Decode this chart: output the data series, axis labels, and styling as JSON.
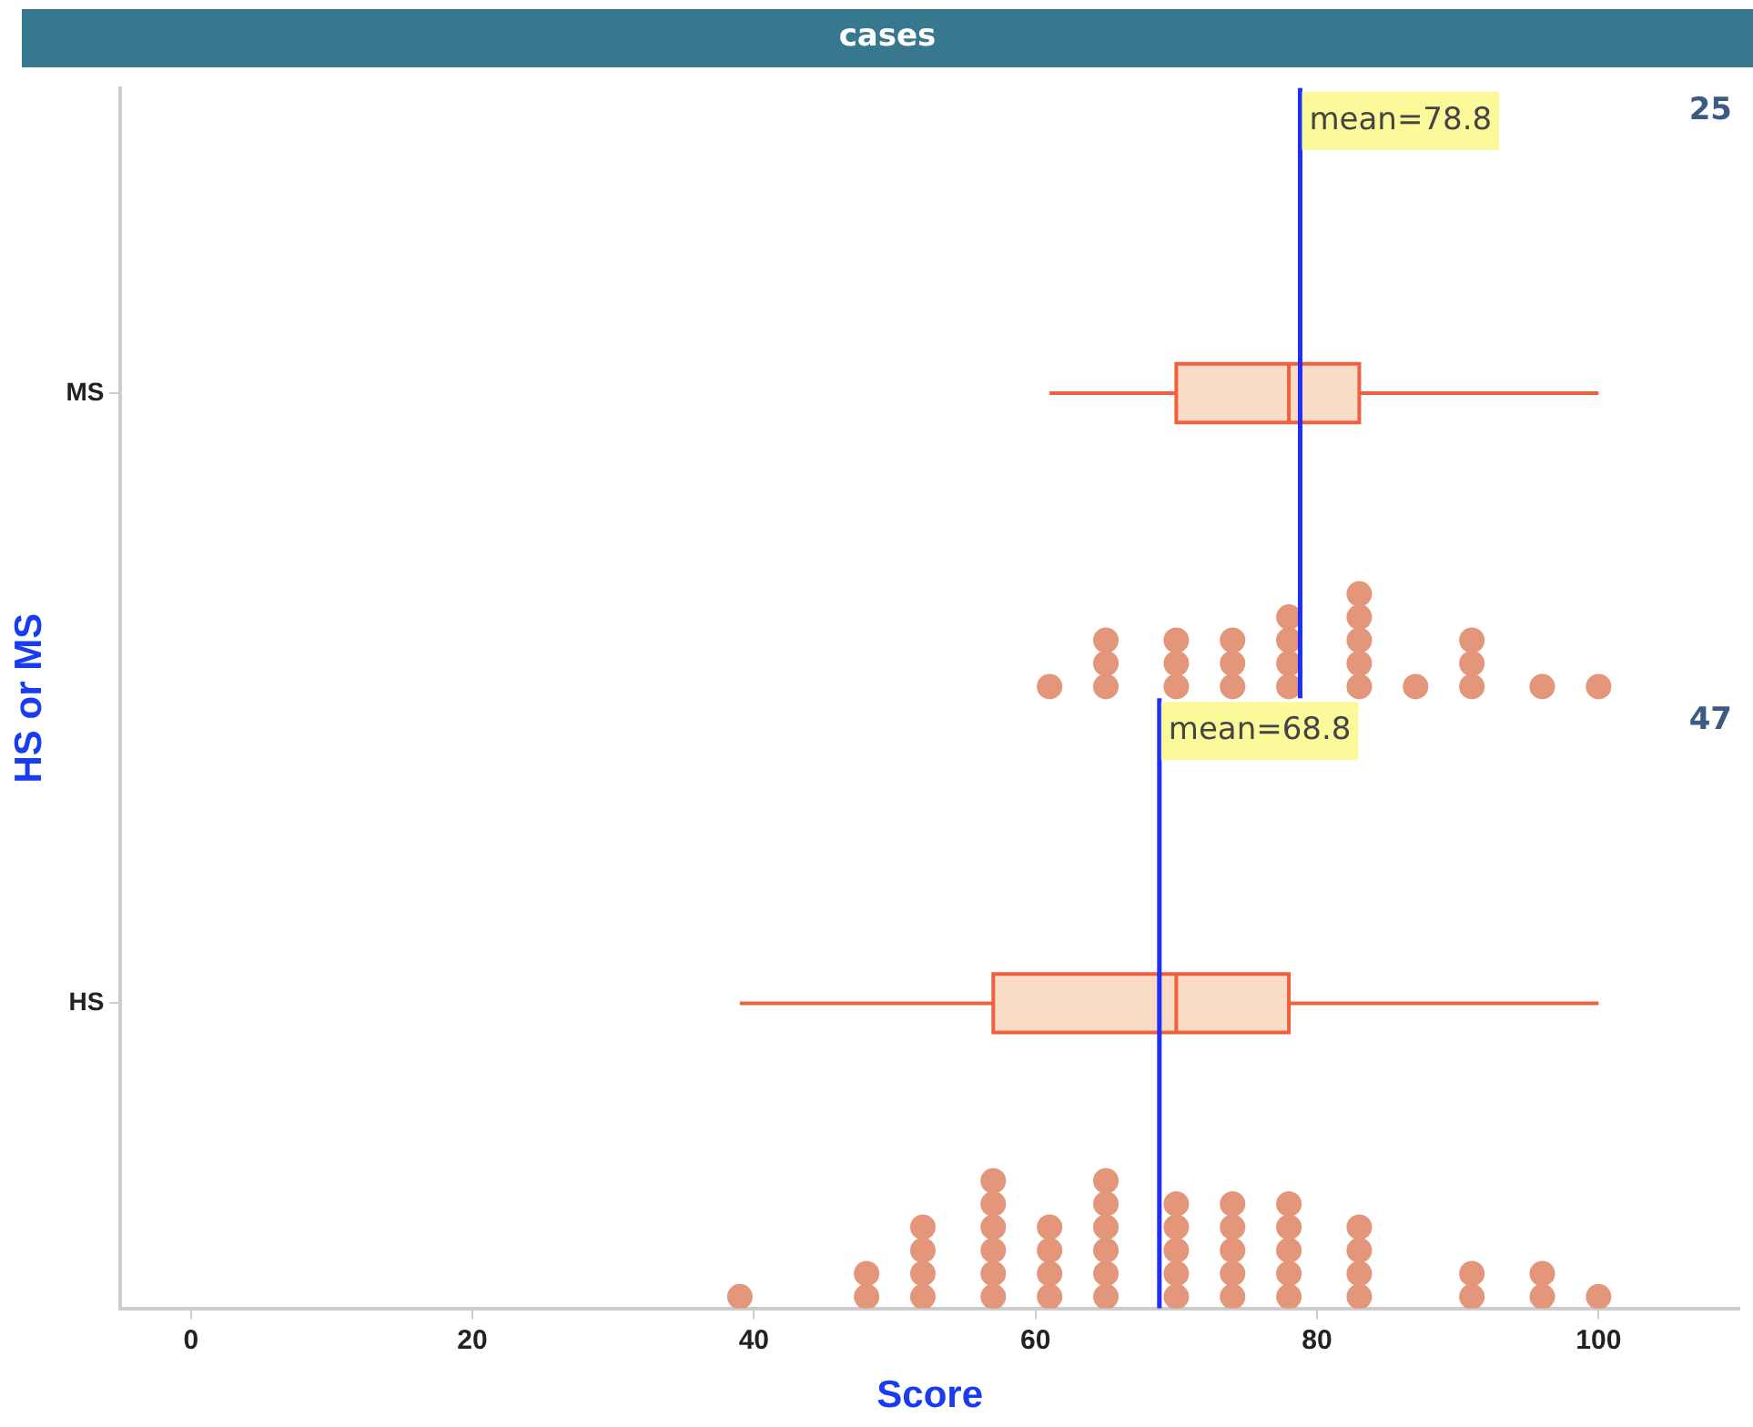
{
  "chart_data": {
    "type": "box",
    "title": "cases",
    "xlabel": "Score",
    "ylabel": "HS or MS",
    "orientation": "horizontal",
    "categories": [
      "MS",
      "HS"
    ],
    "boxes": [
      {
        "low": 61,
        "q1": 70,
        "median": 78,
        "q3": 83,
        "high": 100
      },
      {
        "low": 39,
        "q1": 57,
        "median": 70,
        "q3": 78,
        "high": 100
      }
    ],
    "ref_lines": [
      {
        "axis": "x",
        "value": 78.8,
        "label": "mean=78.8",
        "color": "#1f2ff5"
      },
      {
        "axis": "x",
        "value": 68.8,
        "label": "mean=68.8",
        "color": "#1f2ff5"
      }
    ],
    "color": "#f0603e",
    "series": [
      {
        "type": "scatter",
        "color": "#e3967a",
        "x": [
          "MS",
          "MS",
          "MS",
          "MS",
          "MS",
          "MS",
          "MS",
          "MS",
          "MS",
          "MS",
          "MS",
          "MS",
          "MS",
          "MS",
          "MS",
          "MS",
          "MS",
          "MS",
          "MS",
          "MS",
          "MS",
          "MS",
          "MS",
          "MS",
          "MS",
          "HS",
          "HS",
          "HS",
          "HS",
          "HS",
          "HS",
          "HS",
          "HS",
          "HS",
          "HS",
          "HS",
          "HS",
          "HS",
          "HS",
          "HS",
          "HS",
          "HS",
          "HS",
          "HS",
          "HS",
          "HS",
          "HS",
          "HS",
          "HS",
          "HS",
          "HS",
          "HS",
          "HS",
          "HS",
          "HS",
          "HS",
          "HS",
          "HS",
          "HS",
          "HS",
          "HS",
          "HS",
          "HS",
          "HS",
          "HS",
          "HS",
          "HS",
          "HS",
          "HS",
          "HS",
          "HS",
          "HS"
        ],
        "values": [
          61,
          65,
          65,
          65,
          70,
          70,
          70,
          74,
          74,
          74,
          78,
          78,
          78,
          78,
          83,
          83,
          83,
          83,
          83,
          87,
          91,
          91,
          91,
          96,
          100,
          39,
          48,
          48,
          52,
          52,
          52,
          52,
          57,
          57,
          57,
          57,
          57,
          57,
          61,
          61,
          61,
          61,
          65,
          65,
          65,
          65,
          65,
          65,
          70,
          70,
          70,
          70,
          70,
          74,
          74,
          74,
          74,
          74,
          78,
          78,
          78,
          78,
          78,
          83,
          83,
          83,
          83,
          91,
          91,
          96,
          96,
          100
        ]
      }
    ],
    "xlim": [
      -5,
      110
    ],
    "xticks": [
      0,
      20,
      40,
      60,
      80,
      100
    ],
    "annotations": [
      "25",
      "47"
    ],
    "legend": false,
    "marker": "circle"
  }
}
